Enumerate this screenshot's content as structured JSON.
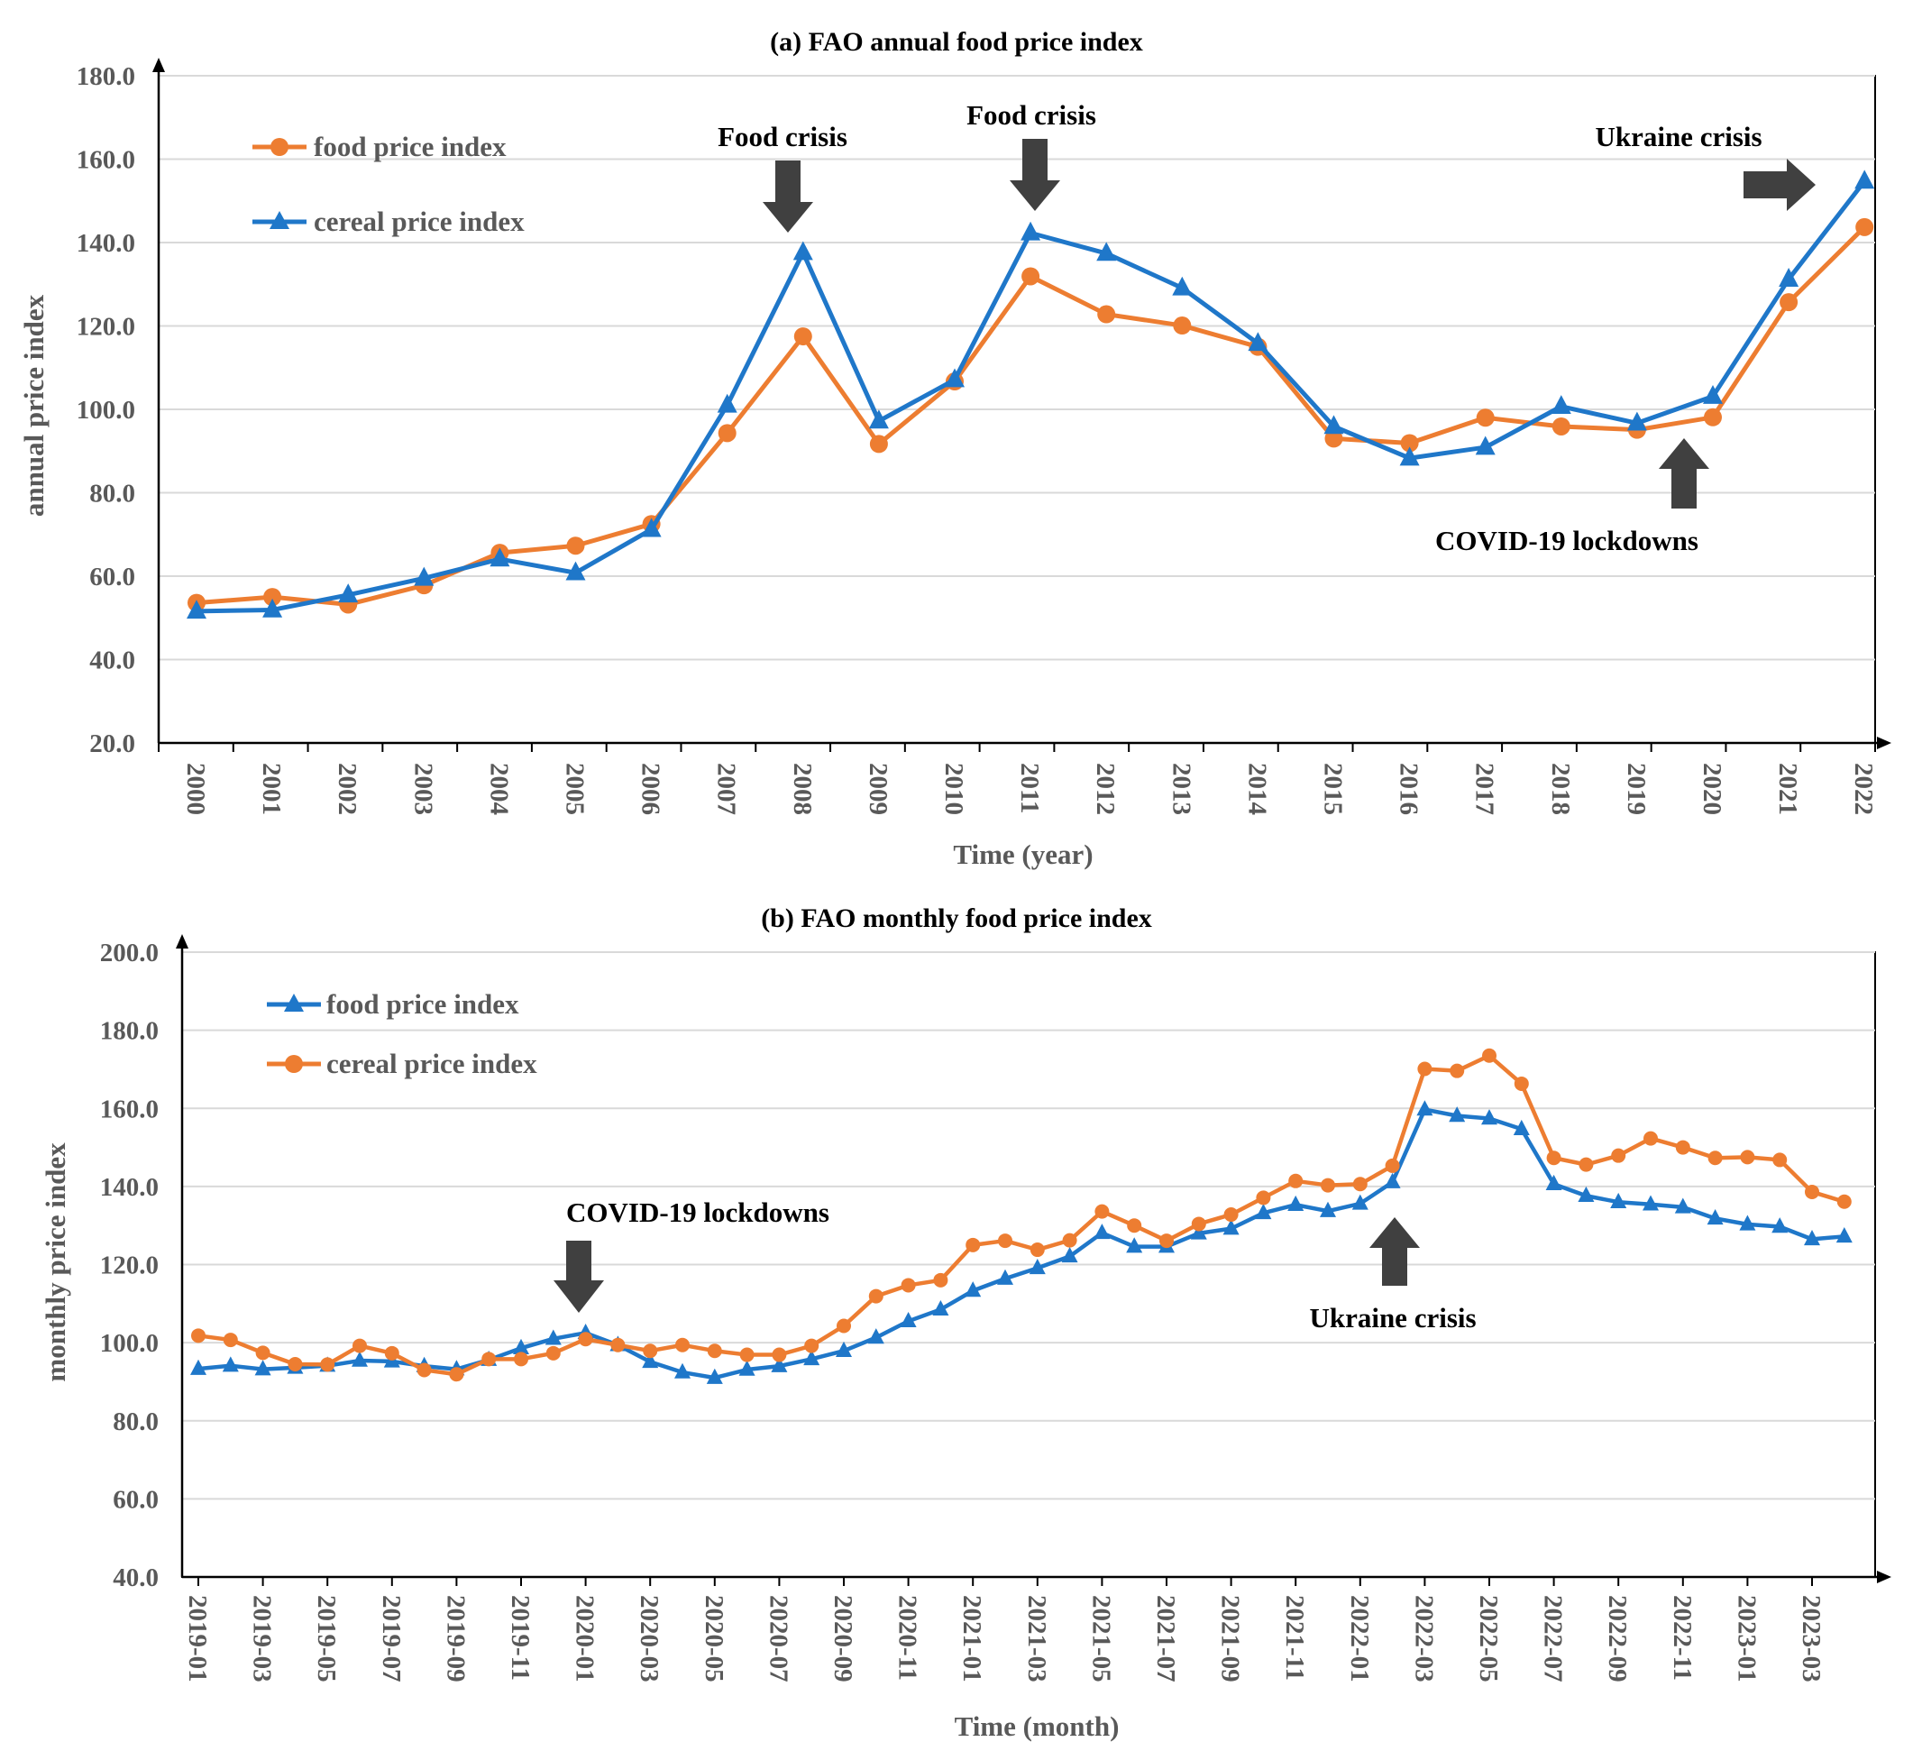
{
  "chart_data": [
    {
      "type": "line",
      "title": "(a) FAO annual food price index",
      "xlabel": "Time (year)",
      "ylabel": "annual price index",
      "ylim": [
        20,
        180
      ],
      "yticks": [
        "20.0",
        "40.0",
        "60.0",
        "80.0",
        "100.0",
        "120.0",
        "140.0",
        "160.0",
        "180.0"
      ],
      "categories": [
        "2000",
        "2001",
        "2002",
        "2003",
        "2004",
        "2005",
        "2006",
        "2007",
        "2008",
        "2009",
        "2010",
        "2011",
        "2012",
        "2013",
        "2014",
        "2015",
        "2016",
        "2017",
        "2018",
        "2019",
        "2020",
        "2021",
        "2022"
      ],
      "series": [
        {
          "name": "food price index",
          "color": "#ED7D31",
          "marker": "circle",
          "values": [
            53.6,
            55.0,
            53.2,
            57.8,
            65.6,
            67.3,
            72.5,
            94.3,
            117.5,
            91.7,
            106.7,
            131.9,
            122.8,
            120.1,
            115.0,
            93.0,
            91.9,
            98.0,
            95.9,
            95.1,
            98.1,
            125.7,
            143.7
          ]
        },
        {
          "name": "cereal price index",
          "color": "#1F77C9",
          "marker": "triangle",
          "values": [
            51.6,
            51.9,
            55.5,
            59.5,
            64.1,
            60.8,
            71.2,
            101.0,
            137.6,
            97.2,
            107.1,
            142.3,
            137.4,
            129.1,
            115.8,
            95.9,
            88.3,
            90.9,
            100.7,
            96.7,
            103.1,
            131.2,
            154.7
          ]
        }
      ],
      "legend": "top-left",
      "grid": true,
      "annotations": [
        "Food crisis",
        "Food crisis",
        "Ukraine crisis",
        "COVID-19 lockdowns"
      ]
    },
    {
      "type": "line",
      "title": "(b) FAO monthly food price index",
      "xlabel": "Time (month)",
      "ylabel": "monthly price index",
      "ylim": [
        40,
        200
      ],
      "yticks": [
        "40.0",
        "60.0",
        "80.0",
        "100.0",
        "120.0",
        "140.0",
        "160.0",
        "180.0",
        "200.0"
      ],
      "xticks": [
        "2019-01",
        "2019-03",
        "2019-05",
        "2019-07",
        "2019-09",
        "2019-11",
        "2020-01",
        "2020-03",
        "2020-05",
        "2020-07",
        "2020-09",
        "2020-11",
        "2021-01",
        "2021-03",
        "2021-05",
        "2021-07",
        "2021-09",
        "2021-11",
        "2022-01",
        "2022-03",
        "2022-05",
        "2022-07",
        "2022-09",
        "2022-11",
        "2023-01",
        "2023-03"
      ],
      "series": [
        {
          "name": "food price index",
          "color": "#1F77C9",
          "marker": "triangle",
          "values": [
            93.3,
            94.1,
            93.2,
            93.6,
            94.1,
            95.4,
            95.2,
            94.0,
            93.2,
            95.6,
            98.6,
            101.0,
            102.5,
            99.4,
            95.1,
            92.4,
            91.0,
            93.1,
            94.0,
            95.8,
            97.9,
            101.3,
            105.5,
            108.5,
            113.3,
            116.4,
            119.1,
            122.1,
            128.1,
            124.6,
            124.6,
            128.0,
            129.2,
            133.2,
            135.3,
            133.7,
            135.6,
            141.1,
            159.7,
            158.1,
            157.4,
            154.7,
            140.6,
            137.6,
            136.0,
            135.4,
            134.7,
            131.8,
            130.3,
            129.7,
            126.5,
            127.2
          ]
        },
        {
          "name": "cereal price index",
          "color": "#ED7D31",
          "marker": "circle",
          "values": [
            101.8,
            100.7,
            97.4,
            94.5,
            94.4,
            99.2,
            97.3,
            93.0,
            91.9,
            95.8,
            95.8,
            97.3,
            100.9,
            99.4,
            97.9,
            99.4,
            97.9,
            96.9,
            96.9,
            99.2,
            104.3,
            111.9,
            114.7,
            116.0,
            125.0,
            126.1,
            123.8,
            126.2,
            133.6,
            130.0,
            126.1,
            130.4,
            132.8,
            137.1,
            141.4,
            140.3,
            140.6,
            145.3,
            170.1,
            169.6,
            173.5,
            166.3,
            147.3,
            145.6,
            147.9,
            152.3,
            150.0,
            147.3,
            147.5,
            146.8,
            138.6,
            136.1
          ]
        }
      ],
      "legend": "top-left",
      "grid": true,
      "annotations": [
        "COVID-19 lockdowns",
        "Ukraine crisis"
      ]
    }
  ]
}
